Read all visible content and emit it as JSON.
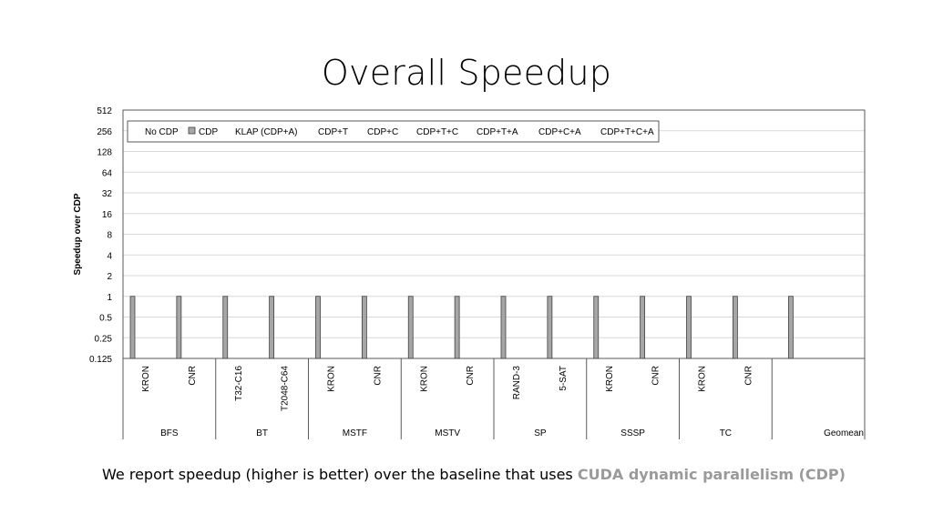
{
  "slide": {
    "title": "Overall Speedup",
    "caption_text": "We report speedup (higher is better) over the baseline that uses ",
    "caption_highlight": "CUDA dynamic parallelism (CDP)"
  },
  "chart_data": {
    "type": "bar",
    "title": "",
    "ylabel": "Speedup over CDP",
    "xlabel": "",
    "yscale": "log2",
    "ylim": [
      0.125,
      512
    ],
    "yticks": [
      "512",
      "256",
      "128",
      "64",
      "32",
      "16",
      "8",
      "4",
      "2",
      "1",
      "0.5",
      "0.25",
      "0.125"
    ],
    "grid": true,
    "legend_position": "top-left",
    "groups": [
      {
        "name": "BFS",
        "categories": [
          "KRON",
          "CNR"
        ]
      },
      {
        "name": "BT",
        "categories": [
          "T32-C16",
          "T2048-C64"
        ]
      },
      {
        "name": "MSTF",
        "categories": [
          "KRON",
          "CNR"
        ]
      },
      {
        "name": "MSTV",
        "categories": [
          "KRON",
          "CNR"
        ]
      },
      {
        "name": "SP",
        "categories": [
          "RAND-3",
          "5-SAT"
        ]
      },
      {
        "name": "SSSP",
        "categories": [
          "KRON",
          "CNR"
        ]
      },
      {
        "name": "TC",
        "categories": [
          "KRON",
          "CNR"
        ]
      },
      {
        "name": "Geomean",
        "categories": [
          ""
        ]
      }
    ],
    "series": [
      {
        "name": "No CDP",
        "color": "#ffffff",
        "values": [
          null,
          null,
          null,
          null,
          null,
          null,
          null,
          null,
          null,
          null,
          null,
          null,
          null,
          null,
          null
        ]
      },
      {
        "name": "CDP",
        "color": "#a6a6a6",
        "values": [
          1,
          1,
          1,
          1,
          1,
          1,
          1,
          1,
          1,
          1,
          1,
          1,
          1,
          1,
          1
        ]
      },
      {
        "name": "KLAP (CDP+A)",
        "color": "#ffffff",
        "values": [
          null,
          null,
          null,
          null,
          null,
          null,
          null,
          null,
          null,
          null,
          null,
          null,
          null,
          null,
          null
        ]
      },
      {
        "name": "CDP+T",
        "color": "#ffffff",
        "values": [
          null,
          null,
          null,
          null,
          null,
          null,
          null,
          null,
          null,
          null,
          null,
          null,
          null,
          null,
          null
        ]
      },
      {
        "name": "CDP+C",
        "color": "#ffffff",
        "values": [
          null,
          null,
          null,
          null,
          null,
          null,
          null,
          null,
          null,
          null,
          null,
          null,
          null,
          null,
          null
        ]
      },
      {
        "name": "CDP+T+C",
        "color": "#ffffff",
        "values": [
          null,
          null,
          null,
          null,
          null,
          null,
          null,
          null,
          null,
          null,
          null,
          null,
          null,
          null,
          null
        ]
      },
      {
        "name": "CDP+T+A",
        "color": "#ffffff",
        "values": [
          null,
          null,
          null,
          null,
          null,
          null,
          null,
          null,
          null,
          null,
          null,
          null,
          null,
          null,
          null
        ]
      },
      {
        "name": "CDP+C+A",
        "color": "#ffffff",
        "values": [
          null,
          null,
          null,
          null,
          null,
          null,
          null,
          null,
          null,
          null,
          null,
          null,
          null,
          null,
          null
        ]
      },
      {
        "name": "CDP+T+C+A",
        "color": "#ffffff",
        "values": [
          null,
          null,
          null,
          null,
          null,
          null,
          null,
          null,
          null,
          null,
          null,
          null,
          null,
          null,
          null
        ]
      }
    ]
  }
}
